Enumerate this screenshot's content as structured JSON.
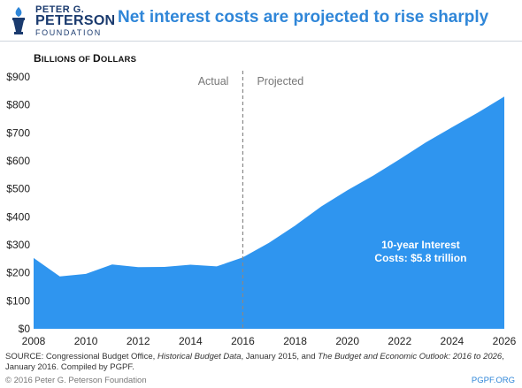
{
  "header": {
    "logo_line1": "PETER G.",
    "logo_line2": "PETERSON",
    "logo_line3": "FOUNDATION",
    "title": "Net interest costs are projected to rise sharply"
  },
  "colors": {
    "area": "#2f95ef",
    "title": "#2f86d8",
    "brand": "#1a3a6e",
    "divider": "#888888"
  },
  "chart_data": {
    "type": "area",
    "ylabel_prefix": "B",
    "ylabel_rest": "ILLIONS OF ",
    "ylabel_prefix2": "D",
    "ylabel_rest2": "OLLARS",
    "x": [
      2008,
      2009,
      2010,
      2011,
      2012,
      2013,
      2014,
      2015,
      2016,
      2017,
      2018,
      2019,
      2020,
      2021,
      2022,
      2023,
      2024,
      2025,
      2026
    ],
    "values": [
      253,
      187,
      196,
      230,
      220,
      221,
      229,
      223,
      255,
      307,
      369,
      437,
      495,
      548,
      606,
      666,
      720,
      773,
      830
    ],
    "xticks": [
      "2008",
      "2010",
      "2012",
      "2014",
      "2016",
      "2018",
      "2020",
      "2022",
      "2024",
      "2026"
    ],
    "yticks": [
      "$0",
      "$100",
      "$200",
      "$300",
      "$400",
      "$500",
      "$600",
      "$700",
      "$800",
      "$900"
    ],
    "ylim": [
      0,
      900
    ],
    "xlim": [
      2008,
      2026
    ],
    "divider_x": 2016,
    "label_actual": "Actual",
    "label_projected": "Projected",
    "annotation_line1": "10-year Interest",
    "annotation_line2": "Costs: $5.8 trillion",
    "grid": false
  },
  "source": {
    "p1": "SOURCE: Congressional Budget Office, ",
    "i1": "Historical Budget Data",
    "p2": ", January 2015, and ",
    "i2": "The Budget and Economic Outlook: 2016 to 2026",
    "p3": ", January 2016. Compiled by PGPF."
  },
  "footer": {
    "copyright": "© 2016 Peter G. Peterson Foundation",
    "site": "PGPF.ORG"
  }
}
